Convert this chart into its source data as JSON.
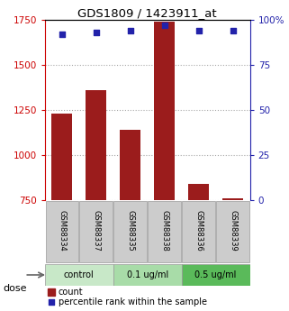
{
  "title": "GDS1809 / 1423911_at",
  "samples": [
    "GSM88334",
    "GSM88337",
    "GSM88335",
    "GSM88338",
    "GSM88336",
    "GSM88339"
  ],
  "counts": [
    1230,
    1360,
    1140,
    1740,
    840,
    760
  ],
  "percentiles": [
    92,
    93,
    94,
    97,
    94,
    94
  ],
  "bar_color": "#9B1C1C",
  "dot_color": "#2222AA",
  "ylim_left": [
    750,
    1750
  ],
  "ylim_right": [
    0,
    100
  ],
  "yticks_left": [
    750,
    1000,
    1250,
    1500,
    1750
  ],
  "yticks_right": [
    0,
    25,
    50,
    75,
    100
  ],
  "yticklabels_right": [
    "0",
    "25",
    "50",
    "75",
    "100%"
  ],
  "left_axis_color": "#CC0000",
  "right_axis_color": "#2222AA",
  "dose_group_colors": [
    "#c8e8c8",
    "#a8dca8",
    "#5aba5a"
  ],
  "dose_group_labels": [
    "control",
    "0.1 ug/ml",
    "0.5 ug/ml"
  ],
  "dose_group_starts": [
    0,
    2,
    4
  ],
  "dose_group_ends": [
    2,
    4,
    6
  ],
  "legend_count_label": "count",
  "legend_percentile_label": "percentile rank within the sample",
  "dose_label": "dose",
  "sample_label_bg": "#cccccc",
  "grid_linestyle": ":"
}
